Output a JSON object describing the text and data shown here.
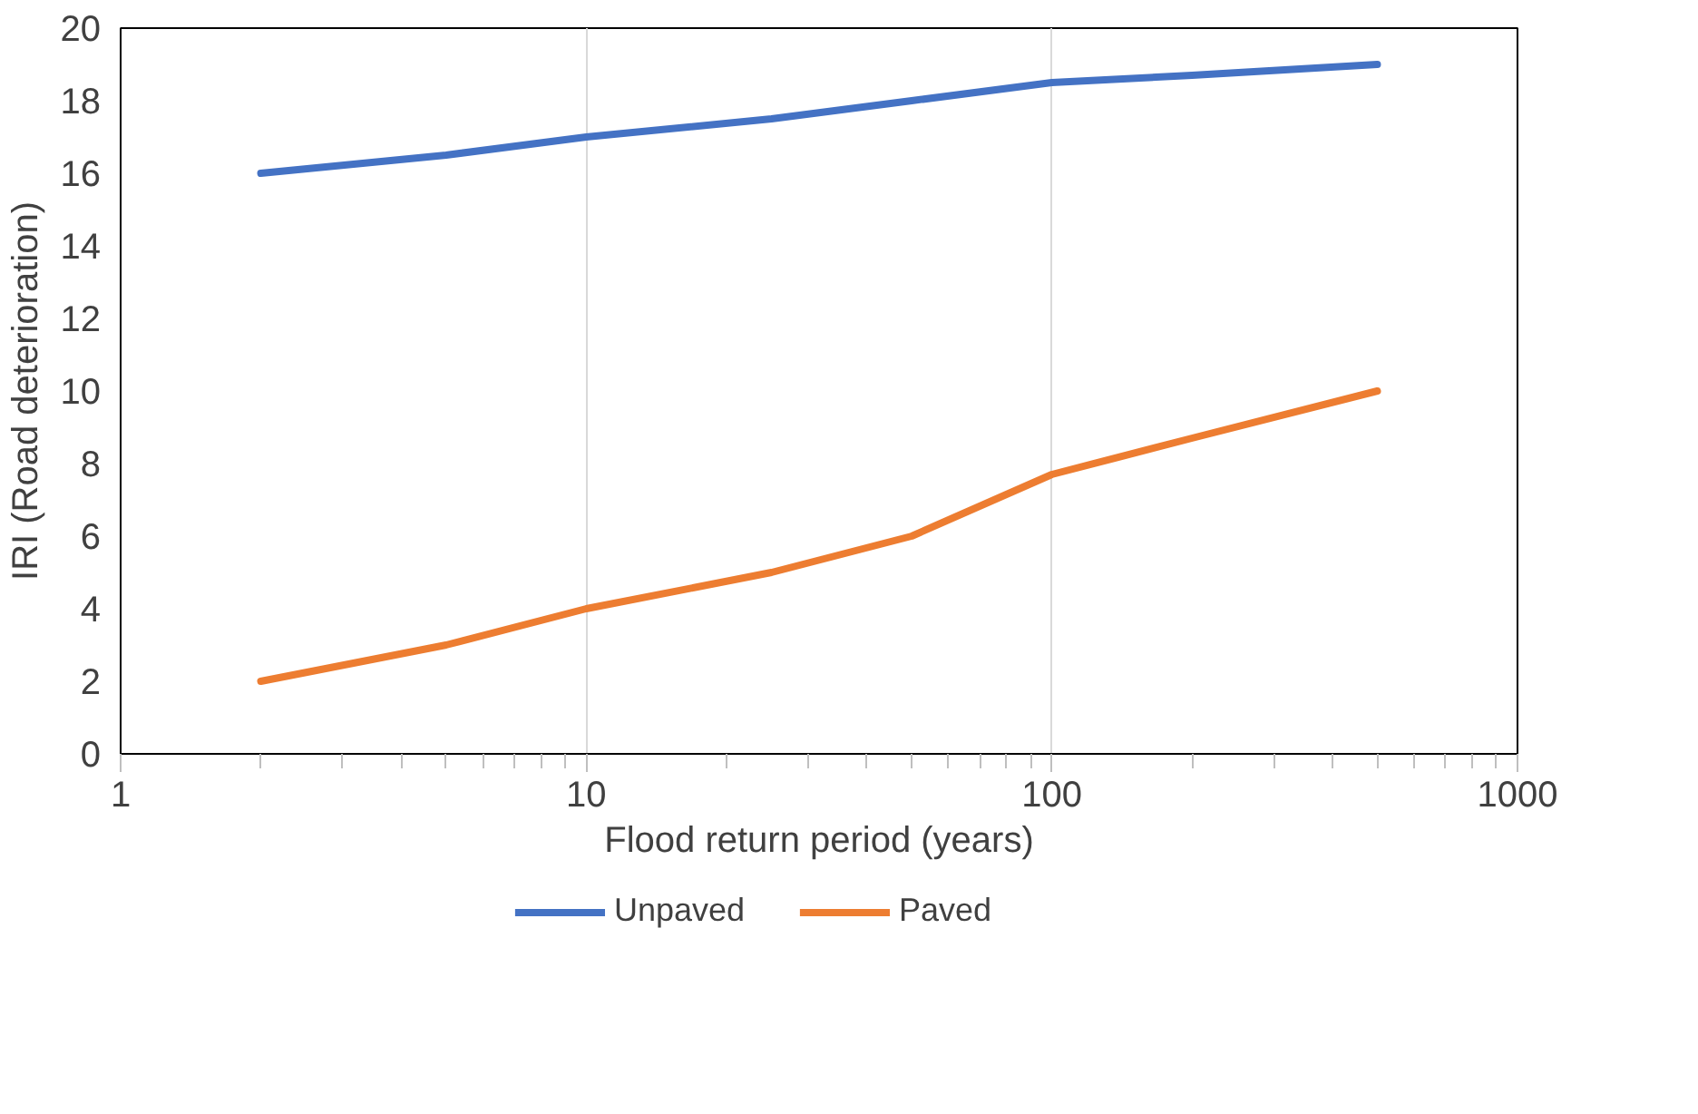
{
  "chart_data": {
    "type": "line",
    "xlabel": "Flood return period (years)",
    "ylabel": "IRI (Road deterioration)",
    "x": [
      2,
      5,
      10,
      25,
      50,
      100,
      200,
      500
    ],
    "series": [
      {
        "name": "Unpaved",
        "color": "#4472c4",
        "values": [
          16,
          16.5,
          17,
          17.5,
          18,
          18.5,
          18.7,
          19
        ]
      },
      {
        "name": "Paved",
        "color": "#ed7d31",
        "values": [
          2,
          3,
          4,
          5,
          6,
          7.7,
          8.7,
          10
        ]
      }
    ],
    "log": "x",
    "xlim": [
      1,
      1000
    ],
    "xticks": [
      1,
      10,
      100,
      1000
    ],
    "ylim": [
      0,
      20
    ],
    "yticks": [
      0,
      2,
      4,
      6,
      8,
      10,
      12,
      14,
      16,
      18,
      20
    ],
    "grid": "x",
    "legend": "bottom",
    "marker": "none",
    "line_style": "solid"
  }
}
